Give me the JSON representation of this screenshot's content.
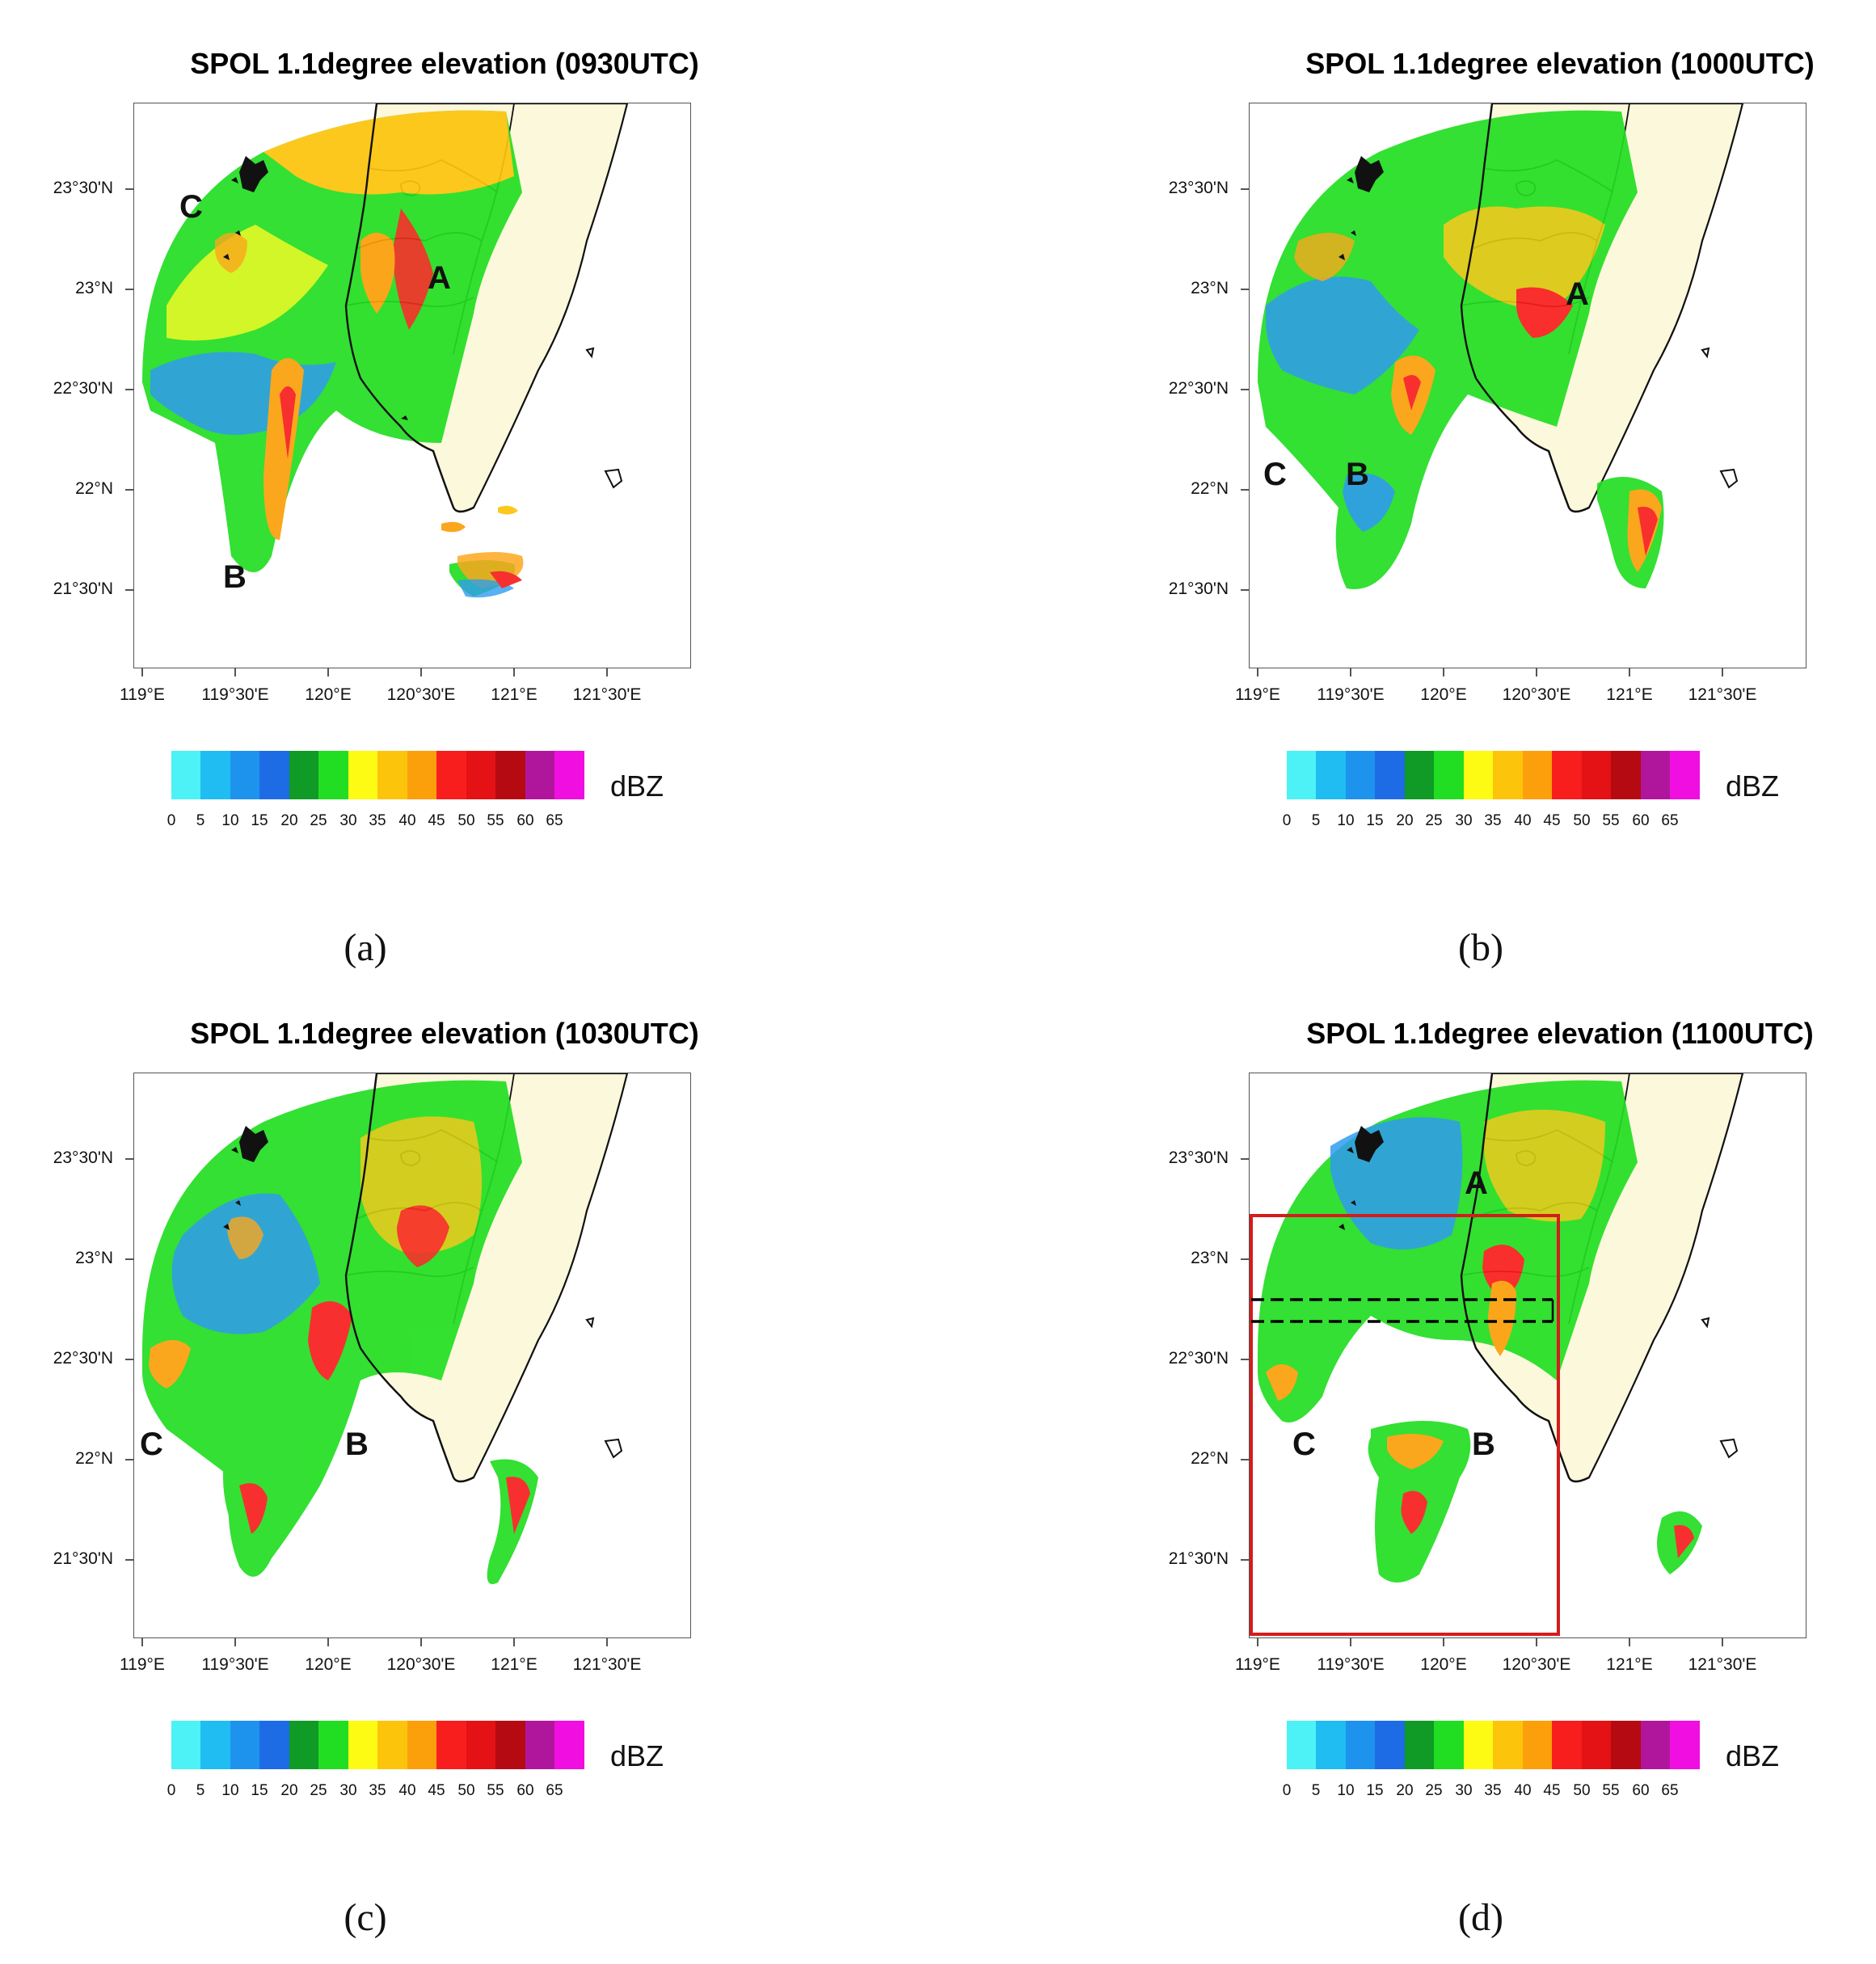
{
  "legend": {
    "unit": "dBZ",
    "ticks": [
      "0",
      "5",
      "10",
      "15",
      "20",
      "25",
      "30",
      "35",
      "40",
      "45",
      "50",
      "55",
      "60",
      "65"
    ],
    "colors": [
      "#ffffff",
      "#4cf2f5",
      "#1fbdf2",
      "#1e93ee",
      "#1d6ce6",
      "#109a26",
      "#22de22",
      "#fdfb14",
      "#fdc40c",
      "#fba00a",
      "#f81e1e",
      "#e41215",
      "#b60a12",
      "#b0169c",
      "#f00fe0"
    ]
  },
  "axes": {
    "lat_labels": [
      "23°30'N",
      "23°N",
      "22°30'N",
      "22°N",
      "21°30'N"
    ],
    "lon_labels": [
      "119°E",
      "119°30'E",
      "120°E",
      "120°30'E",
      "121°E",
      "121°30'E"
    ]
  },
  "panels": [
    {
      "title": "SPOL 1.1degree elevation (0930UTC)",
      "caption": "(a)",
      "annotations": [
        {
          "text": "C"
        },
        {
          "text": "A"
        },
        {
          "text": "B"
        }
      ]
    },
    {
      "title": "SPOL 1.1degree elevation (1000UTC)",
      "caption": "(b)",
      "annotations": [
        {
          "text": "A"
        },
        {
          "text": "C"
        },
        {
          "text": "B"
        }
      ]
    },
    {
      "title": "SPOL 1.1degree elevation (1030UTC)",
      "caption": "(c)",
      "annotations": [
        {
          "text": "C"
        },
        {
          "text": "B"
        }
      ]
    },
    {
      "title": "SPOL 1.1degree elevation (1100UTC)",
      "caption": "(d)",
      "annotations": [
        {
          "text": "A"
        },
        {
          "text": "C"
        },
        {
          "text": "B"
        }
      ]
    }
  ]
}
